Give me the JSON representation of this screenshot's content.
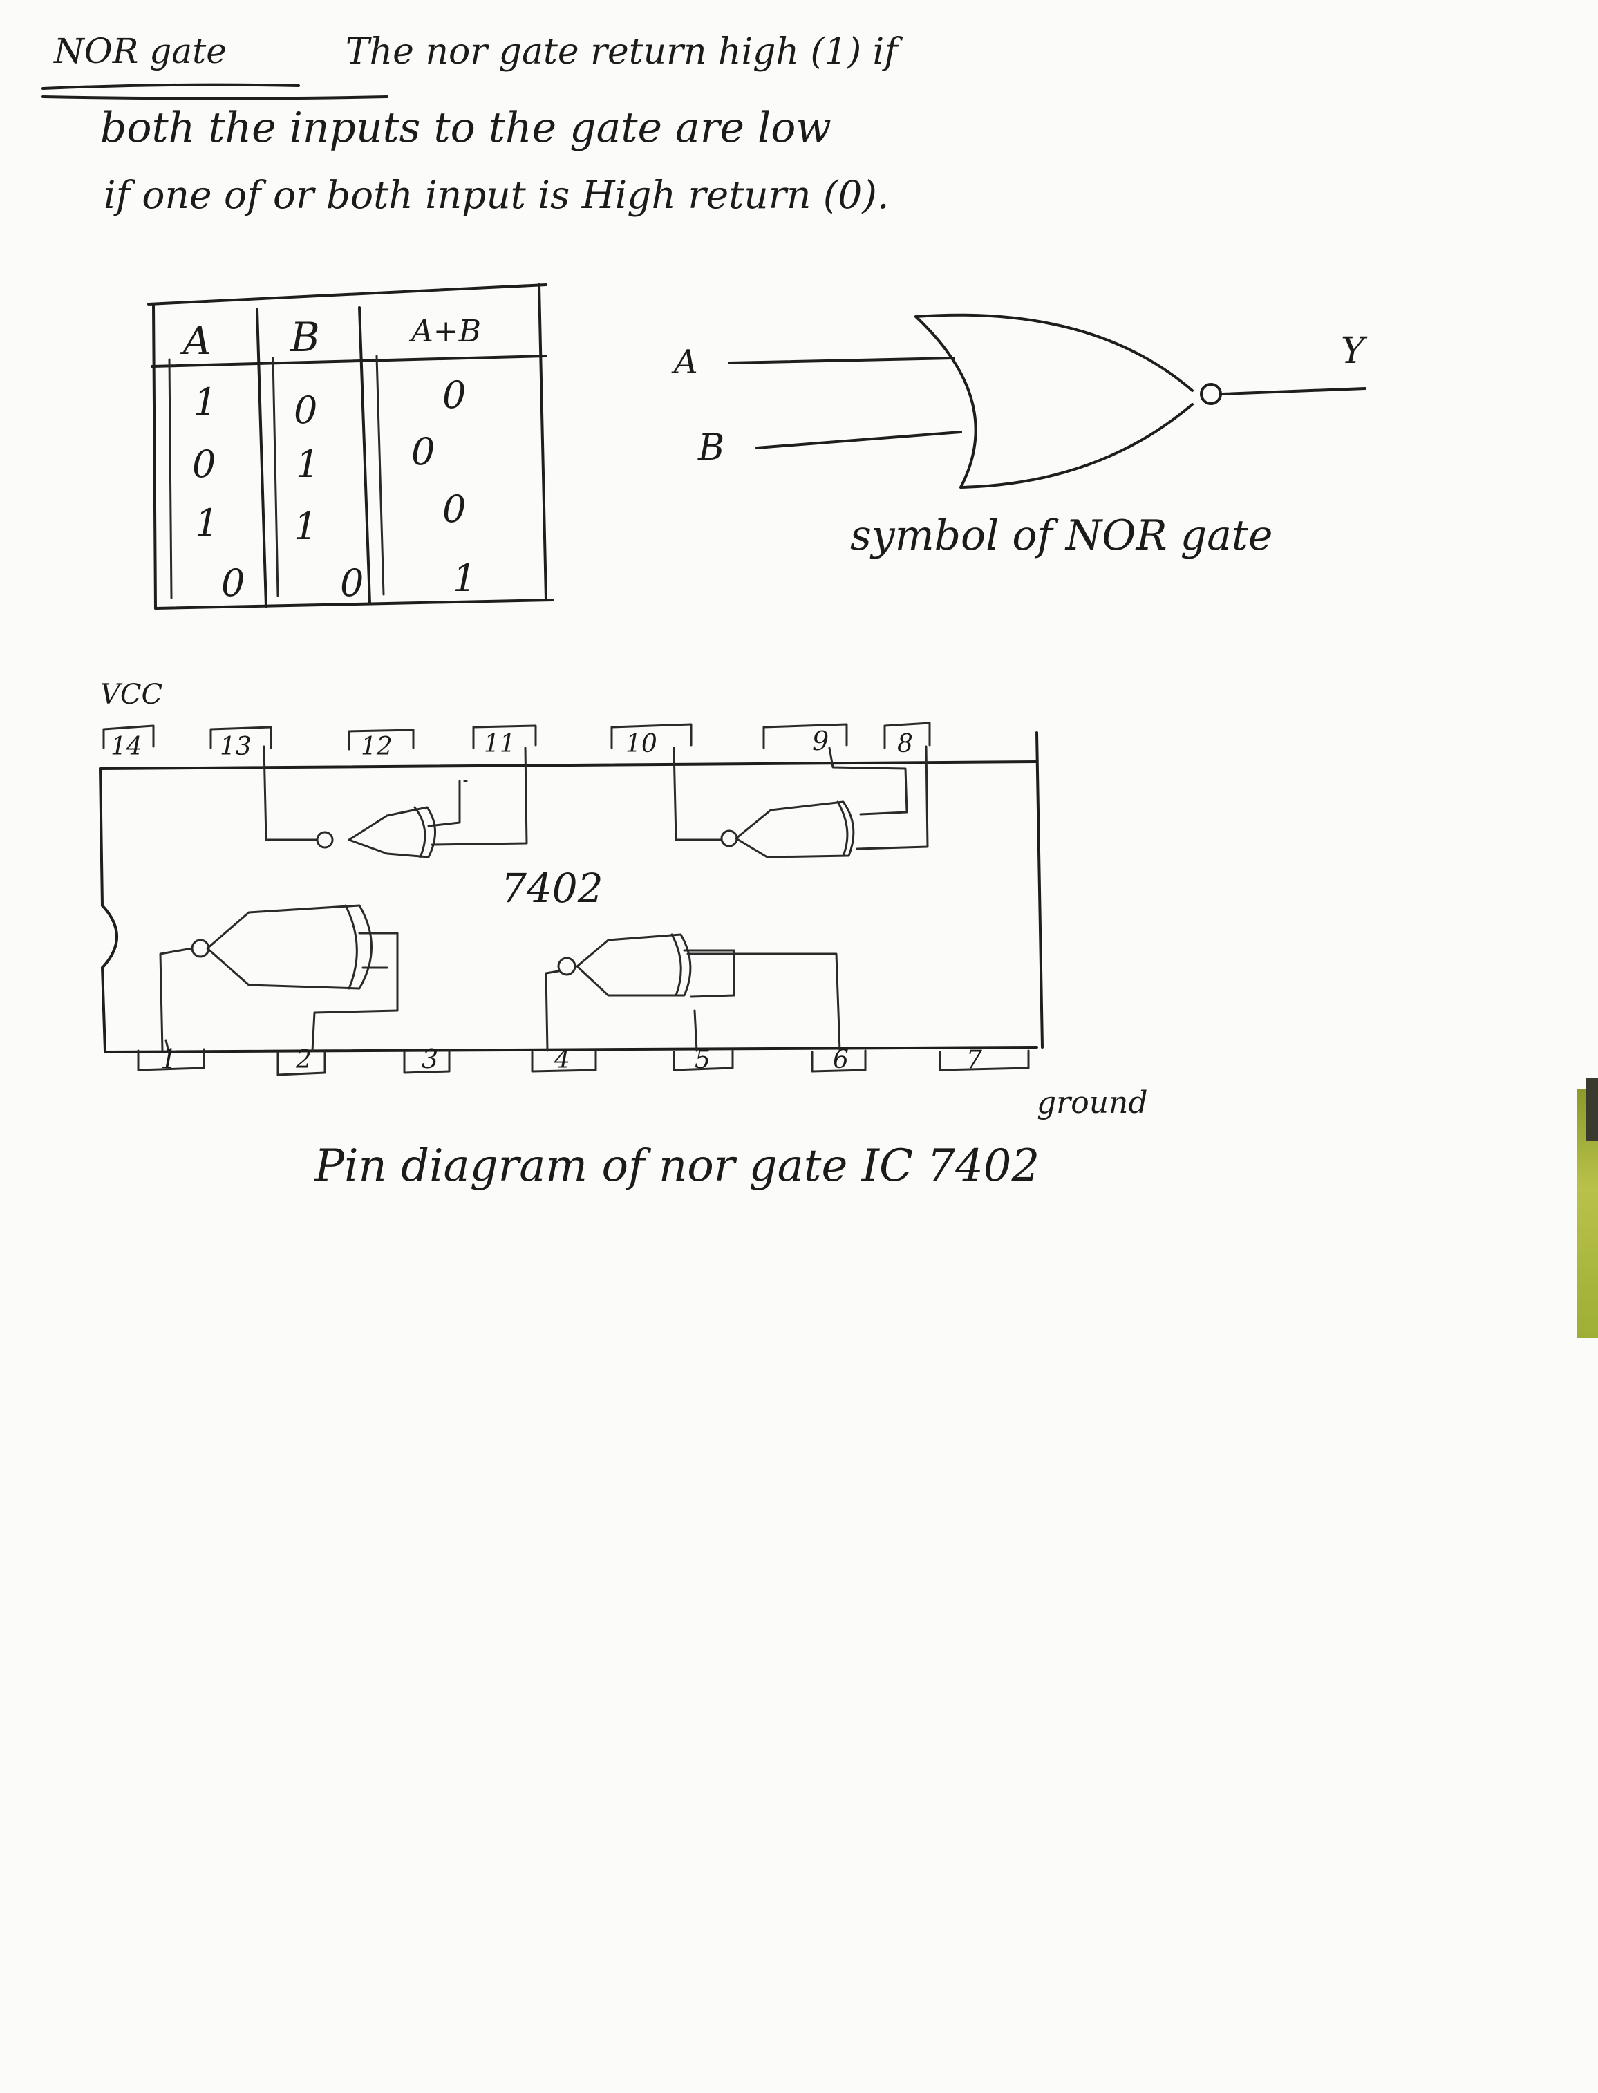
{
  "heading": {
    "title": "NOR gate",
    "line1": "The nor gate return high (1) if",
    "line2": "both the inputs to the gate are low",
    "line3": "if one of or both input is High return (0)."
  },
  "truth_table": {
    "headers": [
      "A",
      "B",
      "A+B"
    ],
    "rows": [
      [
        "1",
        "0",
        "0"
      ],
      [
        "0",
        "1",
        "0"
      ],
      [
        "1",
        "1",
        "0"
      ],
      [
        "0",
        "0",
        "1"
      ]
    ]
  },
  "symbol": {
    "input_a": "A",
    "input_b": "B",
    "output": "Y",
    "caption": "symbol of NOR gate"
  },
  "ic": {
    "vcc_label": "VCC",
    "name": "7402",
    "top_pins": [
      "14",
      "13",
      "12",
      "11",
      "10",
      "9",
      "8"
    ],
    "bottom_pins": [
      "1",
      "2",
      "3",
      "4",
      "5",
      "6",
      "7"
    ],
    "ground_label": "ground",
    "caption": "Pin diagram of nor gate IC 7402"
  }
}
